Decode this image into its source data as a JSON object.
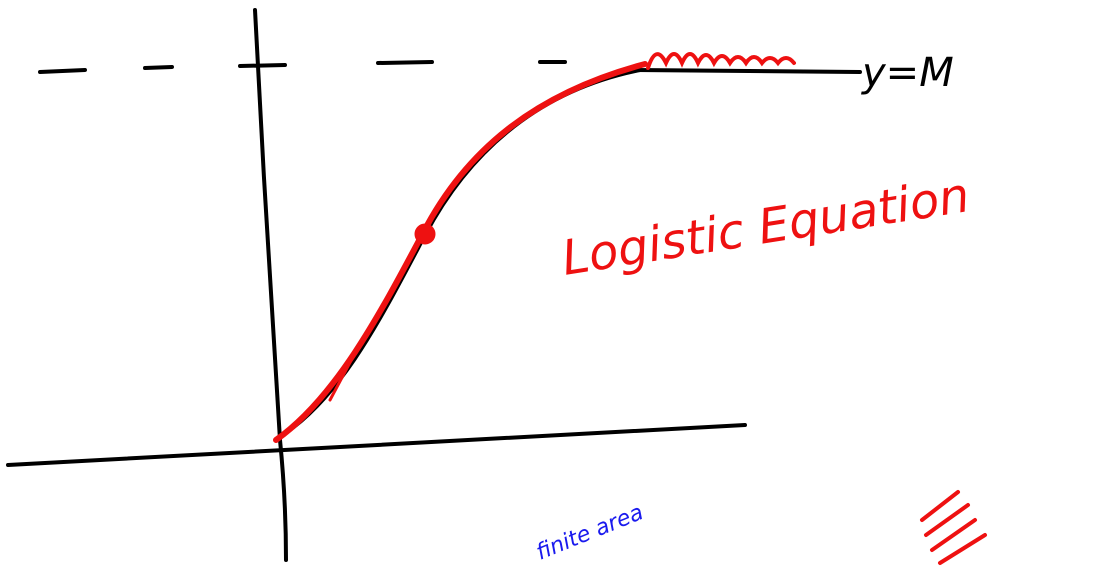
{
  "annotations": {
    "asymptote_label": "y=M",
    "title": "Logistic Equation",
    "area_note": "finite area"
  }
}
